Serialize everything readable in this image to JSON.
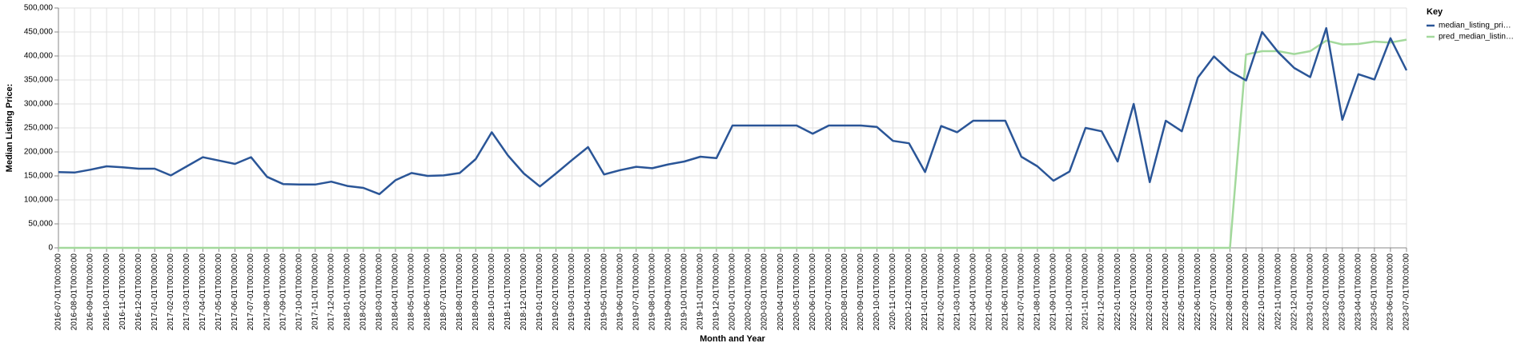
{
  "chart_data": {
    "type": "line",
    "y_label": "Median Listing Price:",
    "x_label": "Month and Year",
    "legend_title": "Key",
    "legend_position": "right",
    "grid": true,
    "categories": [
      "2016-07-01T00:00:00",
      "2016-08-01T00:00:00",
      "2016-09-01T00:00:00",
      "2016-10-01T00:00:00",
      "2016-11-01T00:00:00",
      "2016-12-01T00:00:00",
      "2017-01-01T00:00:00",
      "2017-02-01T00:00:00",
      "2017-03-01T00:00:00",
      "2017-04-01T00:00:00",
      "2017-05-01T00:00:00",
      "2017-06-01T00:00:00",
      "2017-07-01T00:00:00",
      "2017-08-01T00:00:00",
      "2017-09-01T00:00:00",
      "2017-10-01T00:00:00",
      "2017-11-01T00:00:00",
      "2017-12-01T00:00:00",
      "2018-01-01T00:00:00",
      "2018-02-01T00:00:00",
      "2018-03-01T00:00:00",
      "2018-04-01T00:00:00",
      "2018-05-01T00:00:00",
      "2018-06-01T00:00:00",
      "2018-07-01T00:00:00",
      "2018-08-01T00:00:00",
      "2018-09-01T00:00:00",
      "2018-10-01T00:00:00",
      "2018-11-01T00:00:00",
      "2018-12-01T00:00:00",
      "2019-01-01T00:00:00",
      "2019-02-01T00:00:00",
      "2019-03-01T00:00:00",
      "2019-04-01T00:00:00",
      "2019-05-01T00:00:00",
      "2019-06-01T00:00:00",
      "2019-07-01T00:00:00",
      "2019-08-01T00:00:00",
      "2019-09-01T00:00:00",
      "2019-10-01T00:00:00",
      "2019-11-01T00:00:00",
      "2019-12-01T00:00:00",
      "2020-01-01T00:00:00",
      "2020-02-01T00:00:00",
      "2020-03-01T00:00:00",
      "2020-04-01T00:00:00",
      "2020-05-01T00:00:00",
      "2020-06-01T00:00:00",
      "2020-07-01T00:00:00",
      "2020-08-01T00:00:00",
      "2020-09-01T00:00:00",
      "2020-10-01T00:00:00",
      "2020-11-01T00:00:00",
      "2020-12-01T00:00:00",
      "2021-01-01T00:00:00",
      "2021-02-01T00:00:00",
      "2021-03-01T00:00:00",
      "2021-04-01T00:00:00",
      "2021-05-01T00:00:00",
      "2021-06-01T00:00:00",
      "2021-07-01T00:00:00",
      "2021-08-01T00:00:00",
      "2021-09-01T00:00:00",
      "2021-10-01T00:00:00",
      "2021-11-01T00:00:00",
      "2021-12-01T00:00:00",
      "2022-01-01T00:00:00",
      "2022-02-01T00:00:00",
      "2022-03-01T00:00:00",
      "2022-04-01T00:00:00",
      "2022-05-01T00:00:00",
      "2022-06-01T00:00:00",
      "2022-07-01T00:00:00",
      "2022-08-01T00:00:00",
      "2022-09-01T00:00:00",
      "2022-10-01T00:00:00",
      "2022-11-01T00:00:00",
      "2022-12-01T00:00:00",
      "2023-01-01T00:00:00",
      "2023-02-01T00:00:00",
      "2023-03-01T00:00:00",
      "2023-04-01T00:00:00",
      "2023-05-01T00:00:00",
      "2023-06-01T00:00:00",
      "2023-07-01T00:00:00"
    ],
    "series": [
      {
        "name": "median_listing_pri…",
        "color": "#2a5597",
        "values": [
          158000,
          157000,
          163000,
          170000,
          168000,
          165000,
          165000,
          151000,
          170000,
          189000,
          182000,
          175000,
          189000,
          148000,
          133000,
          132000,
          132000,
          138000,
          129000,
          125000,
          112000,
          141000,
          156000,
          150000,
          151000,
          156000,
          185000,
          241000,
          193000,
          155000,
          128000,
          155000,
          183000,
          210000,
          153000,
          162000,
          169000,
          166000,
          174000,
          180000,
          190000,
          187000,
          255000,
          255000,
          255000,
          255000,
          255000,
          238000,
          255000,
          255000,
          255000,
          252000,
          223000,
          218000,
          158000,
          254000,
          241000,
          265000,
          265000,
          265000,
          190000,
          170000,
          140000,
          159000,
          250000,
          243000,
          180000,
          300000,
          137000,
          265000,
          243000,
          355000,
          399000,
          368000,
          349000,
          450000,
          408000,
          375000,
          356000,
          458000,
          267000,
          362000,
          351000,
          437000,
          370000
        ]
      },
      {
        "name": "pred_median_listin…",
        "color": "#a3d99c",
        "values": [
          0,
          0,
          0,
          0,
          0,
          0,
          0,
          0,
          0,
          0,
          0,
          0,
          0,
          0,
          0,
          0,
          0,
          0,
          0,
          0,
          0,
          0,
          0,
          0,
          0,
          0,
          0,
          0,
          0,
          0,
          0,
          0,
          0,
          0,
          0,
          0,
          0,
          0,
          0,
          0,
          0,
          0,
          0,
          0,
          0,
          0,
          0,
          0,
          0,
          0,
          0,
          0,
          0,
          0,
          0,
          0,
          0,
          0,
          0,
          0,
          0,
          0,
          0,
          0,
          0,
          0,
          0,
          0,
          0,
          0,
          0,
          0,
          0,
          0,
          403000,
          410000,
          410000,
          404000,
          410000,
          432000,
          424000,
          425000,
          430000,
          428000,
          434000
        ]
      }
    ],
    "ylim": [
      0,
      500000
    ],
    "yticks": [
      0,
      {
        "value": 50000,
        "label": "50,000"
      },
      {
        "value": 100000,
        "label": "100,000"
      },
      {
        "value": 150000,
        "label": "150,000"
      },
      {
        "value": 200000,
        "label": "200,000"
      },
      {
        "value": 250000,
        "label": "250,000"
      },
      {
        "value": 300000,
        "label": "300,000"
      },
      {
        "value": 350000,
        "label": "350,000"
      },
      {
        "value": 400000,
        "label": "400,000"
      },
      {
        "value": 450000,
        "label": "450,000"
      },
      {
        "value": 500000,
        "label": "500,000"
      }
    ]
  }
}
